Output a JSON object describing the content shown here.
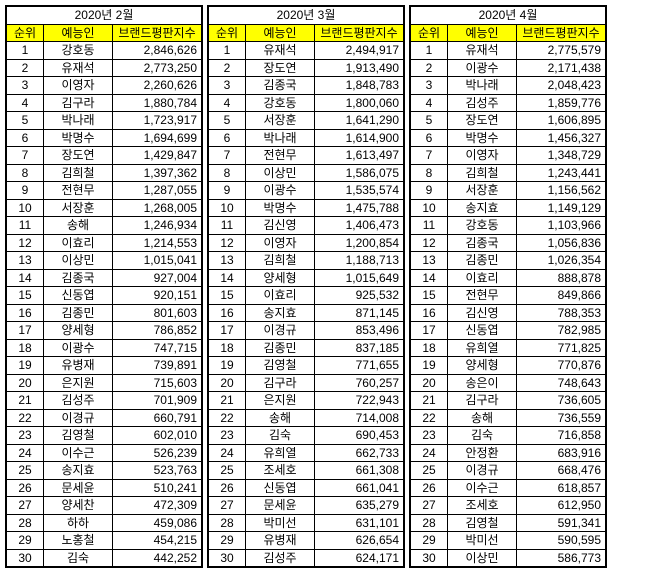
{
  "columns": {
    "rank": "순위",
    "name": "예능인",
    "score": "브랜드평판지수"
  },
  "blocks": [
    {
      "title": "2020년 2월",
      "rows": [
        {
          "r": 1,
          "n": "강호동",
          "s": "2,846,626"
        },
        {
          "r": 2,
          "n": "유재석",
          "s": "2,773,250"
        },
        {
          "r": 3,
          "n": "이영자",
          "s": "2,260,626"
        },
        {
          "r": 4,
          "n": "김구라",
          "s": "1,880,784"
        },
        {
          "r": 5,
          "n": "박나래",
          "s": "1,723,917"
        },
        {
          "r": 6,
          "n": "박명수",
          "s": "1,694,699"
        },
        {
          "r": 7,
          "n": "장도연",
          "s": "1,429,847"
        },
        {
          "r": 8,
          "n": "김희철",
          "s": "1,397,362"
        },
        {
          "r": 9,
          "n": "전현무",
          "s": "1,287,055"
        },
        {
          "r": 10,
          "n": "서장훈",
          "s": "1,268,005"
        },
        {
          "r": 11,
          "n": "송해",
          "s": "1,246,934"
        },
        {
          "r": 12,
          "n": "이효리",
          "s": "1,214,553"
        },
        {
          "r": 13,
          "n": "이상민",
          "s": "1,015,041"
        },
        {
          "r": 14,
          "n": "김종국",
          "s": "927,004"
        },
        {
          "r": 15,
          "n": "신동엽",
          "s": "920,151"
        },
        {
          "r": 16,
          "n": "김종민",
          "s": "801,603"
        },
        {
          "r": 17,
          "n": "양세형",
          "s": "786,852"
        },
        {
          "r": 18,
          "n": "이광수",
          "s": "747,715"
        },
        {
          "r": 19,
          "n": "유병재",
          "s": "739,891"
        },
        {
          "r": 20,
          "n": "은지원",
          "s": "715,603"
        },
        {
          "r": 21,
          "n": "김성주",
          "s": "701,909"
        },
        {
          "r": 22,
          "n": "이경규",
          "s": "660,791"
        },
        {
          "r": 23,
          "n": "김영철",
          "s": "602,010"
        },
        {
          "r": 24,
          "n": "이수근",
          "s": "526,239"
        },
        {
          "r": 25,
          "n": "송지효",
          "s": "523,763"
        },
        {
          "r": 26,
          "n": "문세윤",
          "s": "510,241"
        },
        {
          "r": 27,
          "n": "양세찬",
          "s": "472,309"
        },
        {
          "r": 28,
          "n": "하하",
          "s": "459,086"
        },
        {
          "r": 29,
          "n": "노홍철",
          "s": "454,215"
        },
        {
          "r": 30,
          "n": "김숙",
          "s": "442,252"
        }
      ]
    },
    {
      "title": "2020년 3월",
      "rows": [
        {
          "r": 1,
          "n": "유재석",
          "s": "2,494,917"
        },
        {
          "r": 2,
          "n": "장도연",
          "s": "1,913,490"
        },
        {
          "r": 3,
          "n": "김종국",
          "s": "1,848,783"
        },
        {
          "r": 4,
          "n": "강호동",
          "s": "1,800,060"
        },
        {
          "r": 5,
          "n": "서장훈",
          "s": "1,641,290"
        },
        {
          "r": 6,
          "n": "박나래",
          "s": "1,614,900"
        },
        {
          "r": 7,
          "n": "전현무",
          "s": "1,613,497"
        },
        {
          "r": 8,
          "n": "이상민",
          "s": "1,586,075"
        },
        {
          "r": 9,
          "n": "이광수",
          "s": "1,535,574"
        },
        {
          "r": 10,
          "n": "박명수",
          "s": "1,475,788"
        },
        {
          "r": 11,
          "n": "김신영",
          "s": "1,406,473"
        },
        {
          "r": 12,
          "n": "이영자",
          "s": "1,200,854"
        },
        {
          "r": 13,
          "n": "김희철",
          "s": "1,188,713"
        },
        {
          "r": 14,
          "n": "양세형",
          "s": "1,015,649"
        },
        {
          "r": 15,
          "n": "이효리",
          "s": "925,532"
        },
        {
          "r": 16,
          "n": "송지효",
          "s": "871,145"
        },
        {
          "r": 17,
          "n": "이경규",
          "s": "853,496"
        },
        {
          "r": 18,
          "n": "김종민",
          "s": "837,185"
        },
        {
          "r": 19,
          "n": "김영철",
          "s": "771,655"
        },
        {
          "r": 20,
          "n": "김구라",
          "s": "760,257"
        },
        {
          "r": 21,
          "n": "은지원",
          "s": "722,943"
        },
        {
          "r": 22,
          "n": "송해",
          "s": "714,008"
        },
        {
          "r": 23,
          "n": "김숙",
          "s": "690,453"
        },
        {
          "r": 24,
          "n": "유희열",
          "s": "662,733"
        },
        {
          "r": 25,
          "n": "조세호",
          "s": "661,308"
        },
        {
          "r": 26,
          "n": "신동엽",
          "s": "661,041"
        },
        {
          "r": 27,
          "n": "문세윤",
          "s": "635,279"
        },
        {
          "r": 28,
          "n": "박미선",
          "s": "631,101"
        },
        {
          "r": 29,
          "n": "유병재",
          "s": "626,654"
        },
        {
          "r": 30,
          "n": "김성주",
          "s": "624,171"
        }
      ]
    },
    {
      "title": "2020년 4월",
      "rows": [
        {
          "r": 1,
          "n": "유재석",
          "s": "2,775,579"
        },
        {
          "r": 2,
          "n": "이광수",
          "s": "2,171,438"
        },
        {
          "r": 3,
          "n": "박나래",
          "s": "2,048,423"
        },
        {
          "r": 4,
          "n": "김성주",
          "s": "1,859,776"
        },
        {
          "r": 5,
          "n": "장도연",
          "s": "1,606,895"
        },
        {
          "r": 6,
          "n": "박명수",
          "s": "1,456,327"
        },
        {
          "r": 7,
          "n": "이영자",
          "s": "1,348,729"
        },
        {
          "r": 8,
          "n": "김희철",
          "s": "1,243,441"
        },
        {
          "r": 9,
          "n": "서장훈",
          "s": "1,156,562"
        },
        {
          "r": 10,
          "n": "송지효",
          "s": "1,149,129"
        },
        {
          "r": 11,
          "n": "강호동",
          "s": "1,103,966"
        },
        {
          "r": 12,
          "n": "김종국",
          "s": "1,056,836"
        },
        {
          "r": 13,
          "n": "김종민",
          "s": "1,026,354"
        },
        {
          "r": 14,
          "n": "이효리",
          "s": "888,878"
        },
        {
          "r": 15,
          "n": "전현무",
          "s": "849,866"
        },
        {
          "r": 16,
          "n": "김신영",
          "s": "788,353"
        },
        {
          "r": 17,
          "n": "신동엽",
          "s": "782,985"
        },
        {
          "r": 18,
          "n": "유희열",
          "s": "771,825"
        },
        {
          "r": 19,
          "n": "양세형",
          "s": "770,876"
        },
        {
          "r": 20,
          "n": "송은이",
          "s": "748,643"
        },
        {
          "r": 21,
          "n": "김구라",
          "s": "736,605"
        },
        {
          "r": 22,
          "n": "송해",
          "s": "736,559"
        },
        {
          "r": 23,
          "n": "김숙",
          "s": "716,858"
        },
        {
          "r": 24,
          "n": "안정환",
          "s": "683,916"
        },
        {
          "r": 25,
          "n": "이경규",
          "s": "668,476"
        },
        {
          "r": 26,
          "n": "이수근",
          "s": "618,857"
        },
        {
          "r": 27,
          "n": "조세호",
          "s": "612,950"
        },
        {
          "r": 28,
          "n": "김영철",
          "s": "591,341"
        },
        {
          "r": 29,
          "n": "박미선",
          "s": "590,595"
        },
        {
          "r": 30,
          "n": "이상민",
          "s": "586,773"
        }
      ]
    }
  ]
}
